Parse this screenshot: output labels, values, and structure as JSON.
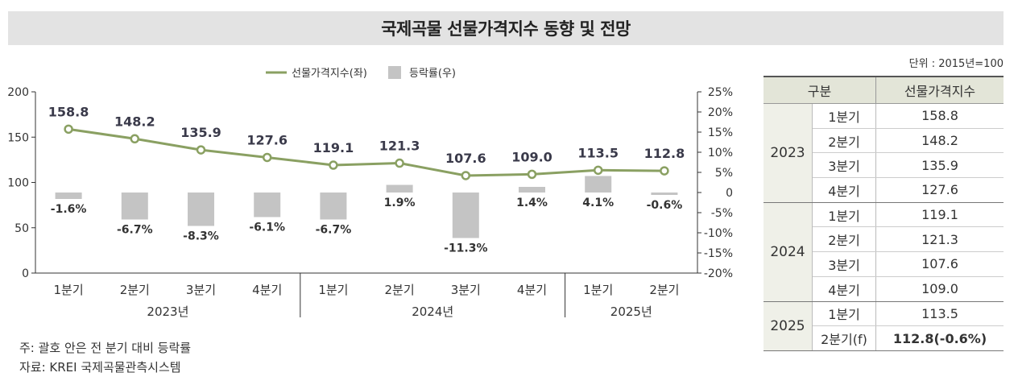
{
  "header": {
    "title": "국제곡물 선물가격지수 동향 및 전망"
  },
  "unit_label": "단위 : 2015년=100",
  "legend": {
    "line_label": "선물가격지수(좌)",
    "bar_label": "등락률(우)"
  },
  "colors": {
    "line": "#8aa062",
    "bar": "#c4c4c4",
    "axis": "#333333"
  },
  "chart_data": {
    "type": "bar-line combo",
    "categories": [
      "1분기",
      "2분기",
      "3분기",
      "4분기",
      "1분기",
      "2분기",
      "3분기",
      "4분기",
      "1분기",
      "2분기"
    ],
    "groups": [
      {
        "label": "2023년",
        "count": 4
      },
      {
        "label": "2024년",
        "count": 4
      },
      {
        "label": "2025년",
        "count": 2
      }
    ],
    "line_series": {
      "name": "선물가격지수(좌)",
      "values": [
        158.8,
        148.2,
        135.9,
        127.6,
        119.1,
        121.3,
        107.6,
        109.0,
        113.5,
        112.8
      ],
      "labels": [
        "158.8",
        "148.2",
        "135.9",
        "127.6",
        "119.1",
        "121.3",
        "107.6",
        "109.0",
        "113.5",
        "112.8"
      ]
    },
    "bar_series": {
      "name": "등락률(우)",
      "values": [
        -1.6,
        -6.7,
        -8.3,
        -6.1,
        -6.7,
        1.9,
        -11.3,
        1.4,
        4.1,
        -0.6
      ],
      "labels": [
        "-1.6%",
        "-6.7%",
        "-8.3%",
        "-6.1%",
        "-6.7%",
        "1.9%",
        "-11.3%",
        "1.4%",
        "4.1%",
        "-0.6%"
      ]
    },
    "y_left": {
      "min": 0,
      "max": 200,
      "ticks": [
        "0",
        "50",
        "100",
        "150",
        "200"
      ]
    },
    "y_right": {
      "min": -20,
      "max": 25,
      "ticks": [
        "-20%",
        "-15%",
        "-10%",
        "-5%",
        "0",
        "5%",
        "10%",
        "15%",
        "20%",
        "25%"
      ]
    },
    "legend_position": "top-center",
    "grid": false
  },
  "table": {
    "headers": [
      "구분",
      "선물가격지수"
    ],
    "groups": [
      {
        "year": "2023",
        "rows": [
          {
            "q": "1분기",
            "v": "158.8"
          },
          {
            "q": "2분기",
            "v": "148.2"
          },
          {
            "q": "3분기",
            "v": "135.9"
          },
          {
            "q": "4분기",
            "v": "127.6"
          }
        ]
      },
      {
        "year": "2024",
        "rows": [
          {
            "q": "1분기",
            "v": "119.1"
          },
          {
            "q": "2분기",
            "v": "121.3"
          },
          {
            "q": "3분기",
            "v": "107.6"
          },
          {
            "q": "4분기",
            "v": "109.0"
          }
        ]
      },
      {
        "year": "2025",
        "rows": [
          {
            "q": "1분기",
            "v": "113.5"
          },
          {
            "q": "2분기(f)",
            "v": "112.8(-0.6%)"
          }
        ]
      }
    ]
  },
  "notes": {
    "note": "주: 괄호 안은 전 분기 대비 등락률",
    "source": "자료: KREI 국제곡물관측시스템"
  }
}
